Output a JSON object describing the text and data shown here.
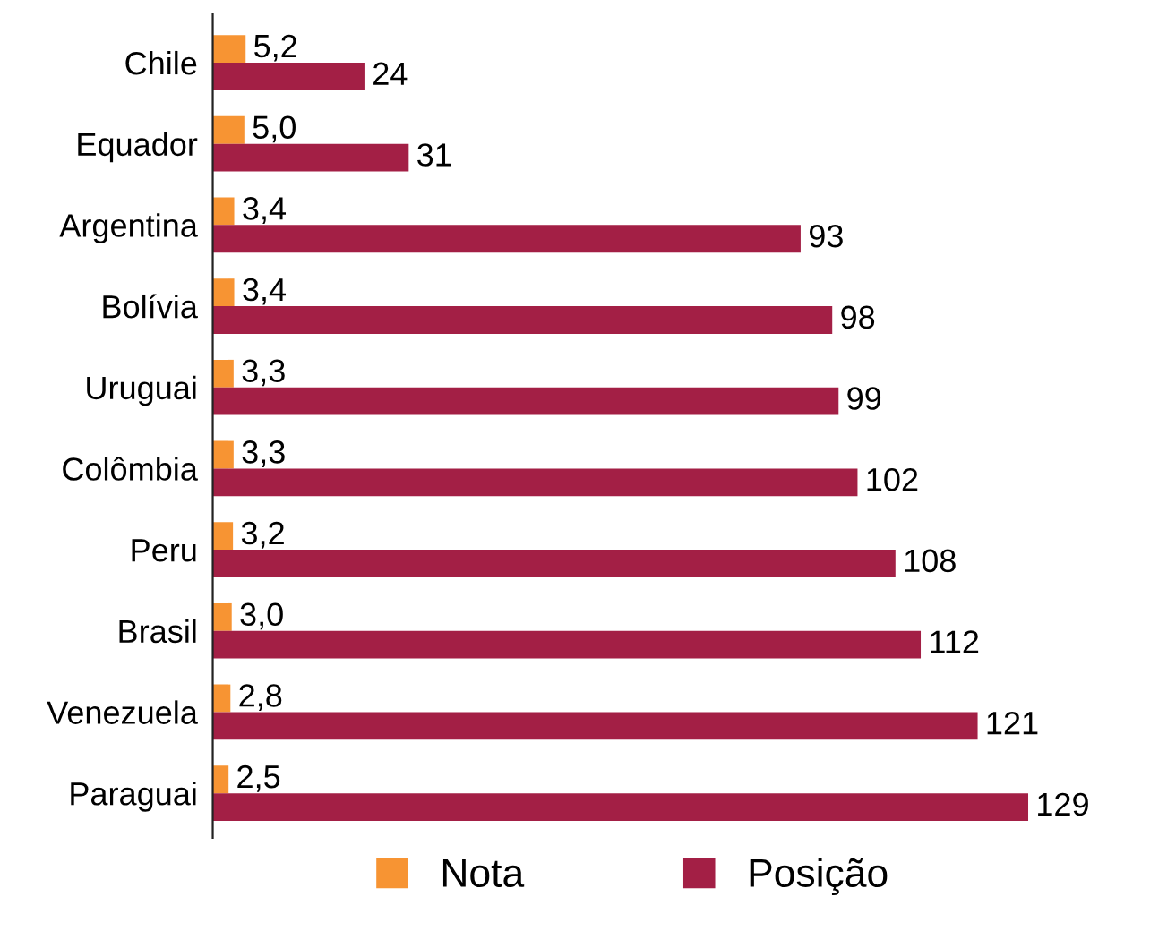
{
  "chart_data": {
    "type": "bar",
    "orientation": "horizontal",
    "categories": [
      "Chile",
      "Equador",
      "Argentina",
      "Bolívia",
      "Uruguai",
      "Colômbia",
      "Peru",
      "Brasil",
      "Venezuela",
      "Paraguai"
    ],
    "series": [
      {
        "name": "Nota",
        "color": "#f79433",
        "values": [
          5.2,
          5.0,
          3.4,
          3.4,
          3.3,
          3.3,
          3.2,
          3.0,
          2.8,
          2.5
        ],
        "value_labels": [
          "5,2",
          "5,0",
          "3,4",
          "3,4",
          "3,3",
          "3,3",
          "3,2",
          "3,0",
          "2,8",
          "2,5"
        ]
      },
      {
        "name": "Posição",
        "color": "#a31f45",
        "values": [
          24,
          31,
          93,
          98,
          99,
          102,
          108,
          112,
          121,
          129
        ],
        "value_labels": [
          "24",
          "31",
          "93",
          "98",
          "99",
          "102",
          "108",
          "112",
          "121",
          "129"
        ]
      }
    ],
    "legend": "bottom",
    "grid": false
  }
}
